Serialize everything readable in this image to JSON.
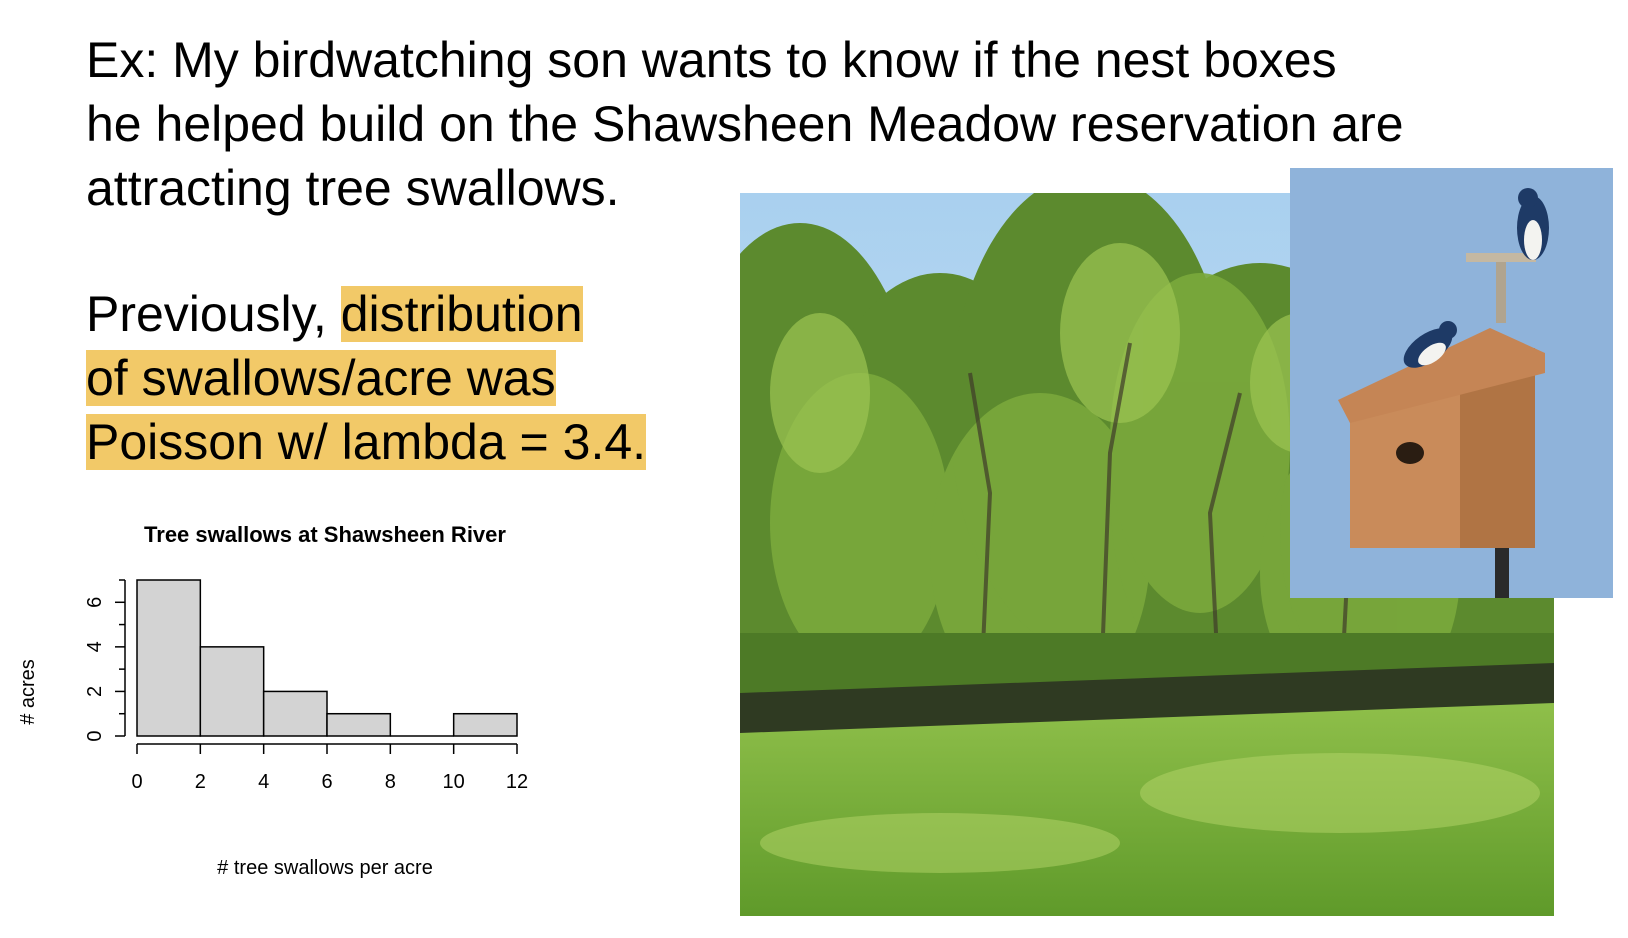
{
  "slide": {
    "intro_lines": [
      "Ex:  My birdwatching son wants to know if the nest boxes",
      "he helped build on the Shawsheen Meadow reservation are",
      "attracting tree swallows."
    ],
    "previously_lead": "Previously, ",
    "previously_highlight_1": "distribution",
    "previously_highlight_2": "of swallows/acre was",
    "previously_highlight_3": "Poisson w/ lambda = 3.4.",
    "highlight_color": "#f2c968"
  },
  "photos": {
    "river_scene": "river-meadow-photo",
    "nest_box": "nest-box-swallows-photo"
  },
  "chart_data": {
    "type": "bar",
    "title": "Tree swallows at Shawsheen River",
    "xlabel": "# tree swallows per acre",
    "ylabel": "# acres",
    "bins": [
      [
        0,
        2
      ],
      [
        2,
        4
      ],
      [
        4,
        6
      ],
      [
        6,
        8
      ],
      [
        8,
        10
      ],
      [
        10,
        12
      ]
    ],
    "values": [
      7,
      4,
      2,
      1,
      0,
      1
    ],
    "xticks": [
      "0",
      "2",
      "4",
      "6",
      "8",
      "10",
      "12"
    ],
    "yticks": [
      "0",
      "2",
      "4",
      "6"
    ],
    "xlim": [
      0,
      12
    ],
    "ylim": [
      0,
      7
    ],
    "bar_color": "#d3d3d3",
    "grid": false
  }
}
